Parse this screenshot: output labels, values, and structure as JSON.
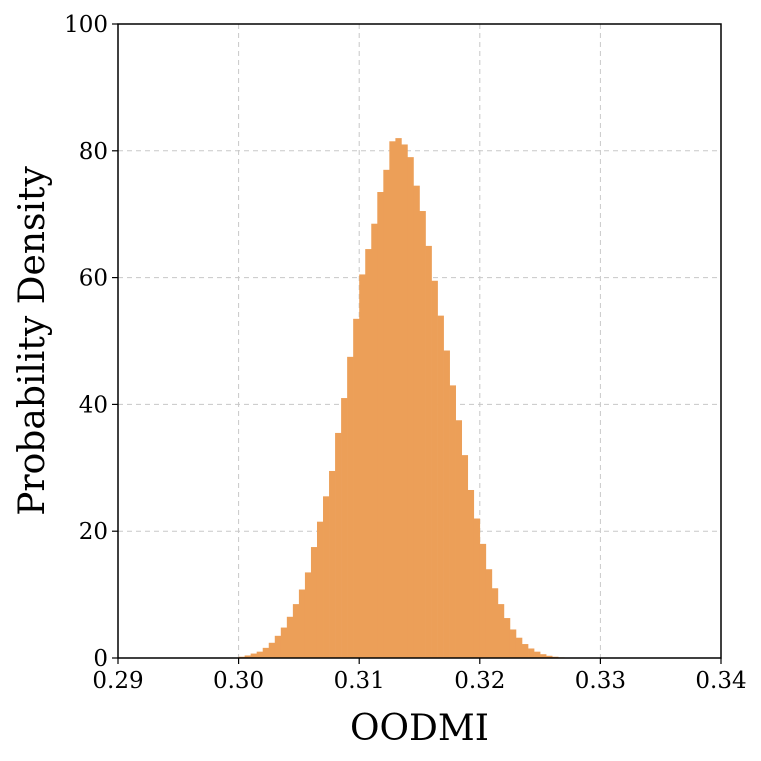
{
  "chart_data": {
    "type": "bar",
    "histogram": true,
    "xlabel": "OODMI",
    "ylabel": "Probability Density",
    "xlim": [
      0.29,
      0.34
    ],
    "ylim": [
      0,
      100
    ],
    "xticks": [
      "0.29",
      "0.30",
      "0.31",
      "0.32",
      "0.33",
      "0.34"
    ],
    "yticks": [
      "0",
      "20",
      "40",
      "60",
      "80",
      "100"
    ],
    "grid": true,
    "bar_color": "#ec9f58",
    "bin_width": 0.0005,
    "bin_start": 0.3,
    "values": [
      0.2,
      0.4,
      0.7,
      1.0,
      1.6,
      2.4,
      3.5,
      4.8,
      6.5,
      8.5,
      10.8,
      13.5,
      17.5,
      21.5,
      25.5,
      29.5,
      35.5,
      41.0,
      47.5,
      53.5,
      60.5,
      64.5,
      68.5,
      73.5,
      77.0,
      81.5,
      82.0,
      81.0,
      79.0,
      74.5,
      70.5,
      65.0,
      59.5,
      54.0,
      48.5,
      43.0,
      37.5,
      32.0,
      26.5,
      22.0,
      18.0,
      14.0,
      11.0,
      8.5,
      6.3,
      4.5,
      3.2,
      2.2,
      1.5,
      1.0,
      0.6,
      0.35,
      0.2,
      0.1
    ]
  }
}
